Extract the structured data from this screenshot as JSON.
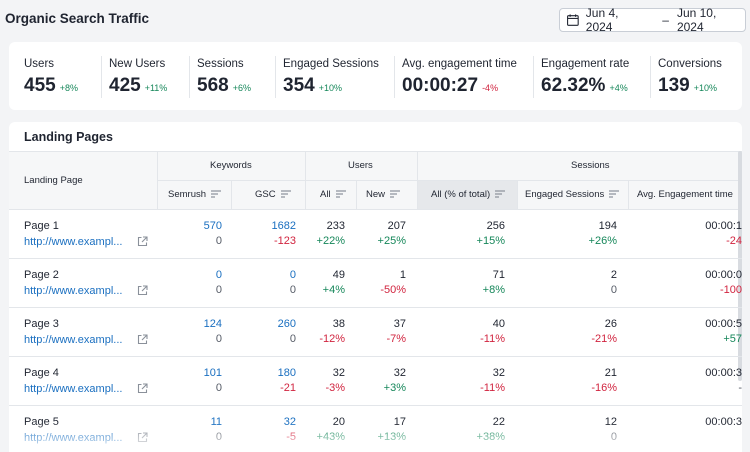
{
  "page": {
    "title": "Organic Search Traffic"
  },
  "date_range": {
    "start": "Jun 4, 2024",
    "separator": "–",
    "end": "Jun 10, 2024"
  },
  "metrics": [
    {
      "label": "Users",
      "value": "455",
      "delta": "+8%",
      "trend": "pos"
    },
    {
      "label": "New Users",
      "value": "425",
      "delta": "+11%",
      "trend": "pos"
    },
    {
      "label": "Sessions",
      "value": "568",
      "delta": "+6%",
      "trend": "pos"
    },
    {
      "label": "Engaged Sessions",
      "value": "354",
      "delta": "+10%",
      "trend": "pos"
    },
    {
      "label": "Avg. engagement time",
      "value": "00:00:27",
      "delta": "-4%",
      "trend": "neg"
    },
    {
      "label": "Engagement rate",
      "value": "62.32%",
      "delta": "+4%",
      "trend": "pos"
    },
    {
      "label": "Conversions",
      "value": "139",
      "delta": "+10%",
      "trend": "pos"
    }
  ],
  "table": {
    "title": "Landing Pages",
    "group_headers": {
      "keywords": "Keywords",
      "users": "Users",
      "sessions": "Sessions"
    },
    "columns": {
      "landing_page": "Landing Page",
      "semrush": "Semrush",
      "gsc": "GSC",
      "all": "All",
      "new": "New",
      "all_pct": "All (% of total)",
      "engaged": "Engaged Sessions",
      "avg_time": "Avg. Engagement time"
    },
    "rows": [
      {
        "page": "Page 1",
        "url": "http://www.exampl...",
        "semrush": "570",
        "semrush_sub": "0",
        "gsc": "1682",
        "gsc_sub": "-123",
        "all": "233",
        "all_delta": "+22%",
        "new": "207",
        "new_delta": "+25%",
        "sess": "256",
        "sess_delta": "+15%",
        "eng": "194",
        "eng_delta": "+26%",
        "avg": "00:00:1",
        "avg_delta": "-24"
      },
      {
        "page": "Page 2",
        "url": "http://www.exampl...",
        "semrush": "0",
        "semrush_sub": "0",
        "gsc": "0",
        "gsc_sub": "0",
        "all": "49",
        "all_delta": "+4%",
        "new": "1",
        "new_delta": "-50%",
        "sess": "71",
        "sess_delta": "+8%",
        "eng": "2",
        "eng_delta": "0",
        "avg": "00:00:0",
        "avg_delta": "-100"
      },
      {
        "page": "Page 3",
        "url": "http://www.exampl...",
        "semrush": "124",
        "semrush_sub": "0",
        "gsc": "260",
        "gsc_sub": "0",
        "all": "38",
        "all_delta": "-12%",
        "new": "37",
        "new_delta": "-7%",
        "sess": "40",
        "sess_delta": "-11%",
        "eng": "26",
        "eng_delta": "-21%",
        "avg": "00:00:5",
        "avg_delta": "+57"
      },
      {
        "page": "Page 4",
        "url": "http://www.exampl...",
        "semrush": "101",
        "semrush_sub": "0",
        "gsc": "180",
        "gsc_sub": "-21",
        "all": "32",
        "all_delta": "-3%",
        "new": "32",
        "new_delta": "+3%",
        "sess": "32",
        "sess_delta": "-11%",
        "eng": "21",
        "eng_delta": "-16%",
        "avg": "00:00:3",
        "avg_delta": "-"
      },
      {
        "page": "Page 5",
        "url": "http://www.exampl...",
        "semrush": "11",
        "semrush_sub": "0",
        "gsc": "32",
        "gsc_sub": "-5",
        "all": "20",
        "all_delta": "+43%",
        "new": "17",
        "new_delta": "+13%",
        "sess": "22",
        "sess_delta": "+38%",
        "eng": "12",
        "eng_delta": "0",
        "avg": "00:00:3",
        "avg_delta": ""
      }
    ]
  },
  "colors": {
    "positive": "#16875a",
    "negative": "#d1243f",
    "link": "#1a6fc0"
  }
}
